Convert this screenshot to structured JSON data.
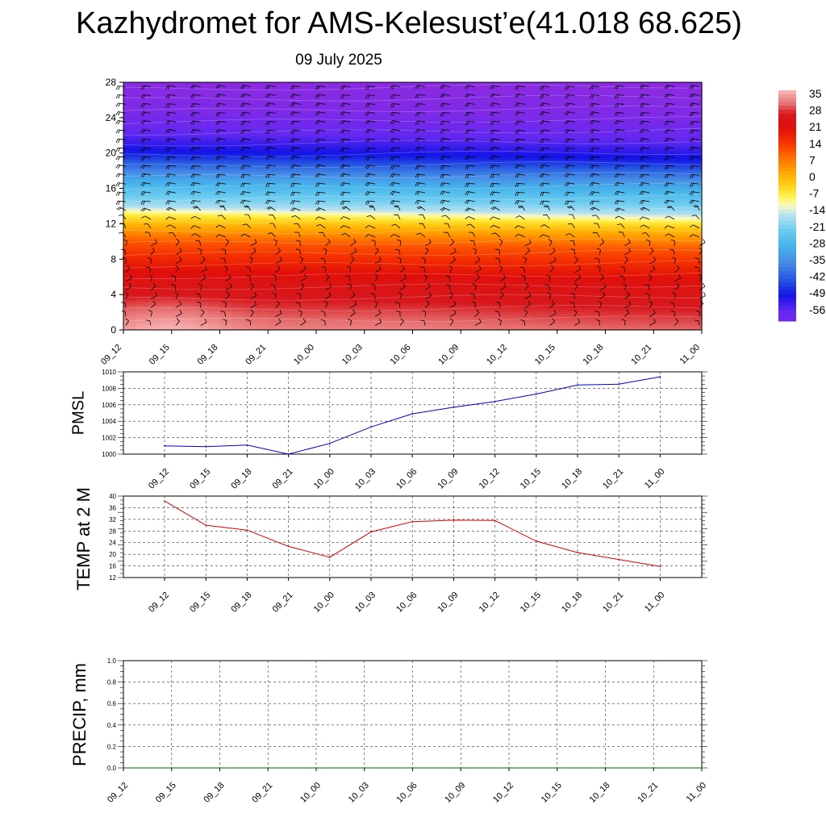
{
  "header": {
    "title": "Kazhydromet for AMS-Kelesust’e(41.018 68.625)",
    "date": "09 July 2025"
  },
  "time_labels": [
    "09_12",
    "09_15",
    "09_18",
    "09_21",
    "10_00",
    "10_03",
    "10_06",
    "10_09",
    "10_12",
    "10_15",
    "10_18",
    "10_21",
    "11_00"
  ],
  "chart_data": [
    {
      "id": "meteogram",
      "type": "heatmap",
      "title": "",
      "xlabel": "",
      "ylabel": "",
      "x_ticks": [
        "09_12",
        "09_15",
        "09_18",
        "09_21",
        "10_00",
        "10_03",
        "10_06",
        "10_09",
        "10_12",
        "10_15",
        "10_18",
        "10_21",
        "11_00"
      ],
      "y_ticks": [
        0,
        4,
        8,
        12,
        16,
        20,
        24,
        28
      ],
      "ylim": [
        0,
        28
      ],
      "colorbar_labels": [
        "35",
        "28",
        "21",
        "14",
        "7",
        "0",
        "-7",
        "-14",
        "-21",
        "-28",
        "-35",
        "-42",
        "-49",
        "-56"
      ],
      "colorbar_range": [
        -60,
        38
      ],
      "level_temperature": [
        {
          "level": 0,
          "value": 33
        },
        {
          "level": 2,
          "value": 30
        },
        {
          "level": 6,
          "value": 24
        },
        {
          "level": 10,
          "value": 12
        },
        {
          "level": 12,
          "value": 1
        },
        {
          "level": 13,
          "value": -6
        },
        {
          "level": 14,
          "value": -16
        },
        {
          "level": 17,
          "value": -30
        },
        {
          "level": 20,
          "value": -48
        },
        {
          "level": 22,
          "value": -55
        },
        {
          "level": 25,
          "value": -63
        },
        {
          "level": 28,
          "value": -66
        }
      ],
      "wind_barbs": "black barbs at each time step and level"
    },
    {
      "id": "pmsl",
      "type": "line",
      "ylabel": "PMSL",
      "x": [
        "09_12",
        "09_15",
        "09_18",
        "09_21",
        "10_00",
        "10_03",
        "10_06",
        "10_09",
        "10_12",
        "10_15",
        "10_18",
        "10_21",
        "11_00"
      ],
      "y_ticks": [
        1000,
        1002,
        1004,
        1006,
        1008,
        1010
      ],
      "ylim": [
        1000,
        1010
      ],
      "series": [
        {
          "values": [
            1001.0,
            1000.9,
            1001.1,
            1000.0,
            1001.3,
            1003.3,
            1004.9,
            1005.7,
            1006.4,
            1007.3,
            1008.4,
            1008.5,
            1009.4
          ],
          "color": "#0000cc"
        }
      ],
      "grid": true
    },
    {
      "id": "temp2m",
      "type": "line",
      "ylabel": "TEMP at 2 M",
      "x": [
        "09_12",
        "09_15",
        "09_18",
        "09_21",
        "10_00",
        "10_03",
        "10_06",
        "10_09",
        "10_12",
        "10_15",
        "10_18",
        "10_21",
        "11_00"
      ],
      "y_ticks": [
        12,
        16,
        20,
        24,
        28,
        32,
        36,
        40
      ],
      "ylim": [
        12,
        40
      ],
      "series": [
        {
          "values": [
            38.3,
            30.0,
            28.3,
            22.7,
            19.0,
            27.7,
            31.2,
            31.7,
            31.6,
            24.5,
            20.6,
            18.2,
            15.8
          ],
          "color": "#dd0000"
        }
      ],
      "grid": true
    },
    {
      "id": "precip",
      "type": "line",
      "ylabel": "PRECIP, mm",
      "x": [
        "09_12",
        "09_15",
        "09_18",
        "09_21",
        "10_00",
        "10_03",
        "10_06",
        "10_09",
        "10_12",
        "10_15",
        "10_18",
        "10_21",
        "11_00"
      ],
      "y_ticks": [
        "0.0",
        "0.2",
        "0.4",
        "0.6",
        "0.8",
        "1.0"
      ],
      "ylim": [
        0,
        1
      ],
      "series": [
        {
          "values": [
            0,
            0,
            0,
            0,
            0,
            0,
            0,
            0,
            0,
            0,
            0,
            0,
            0
          ],
          "color": "#006600"
        }
      ],
      "grid": true
    }
  ]
}
